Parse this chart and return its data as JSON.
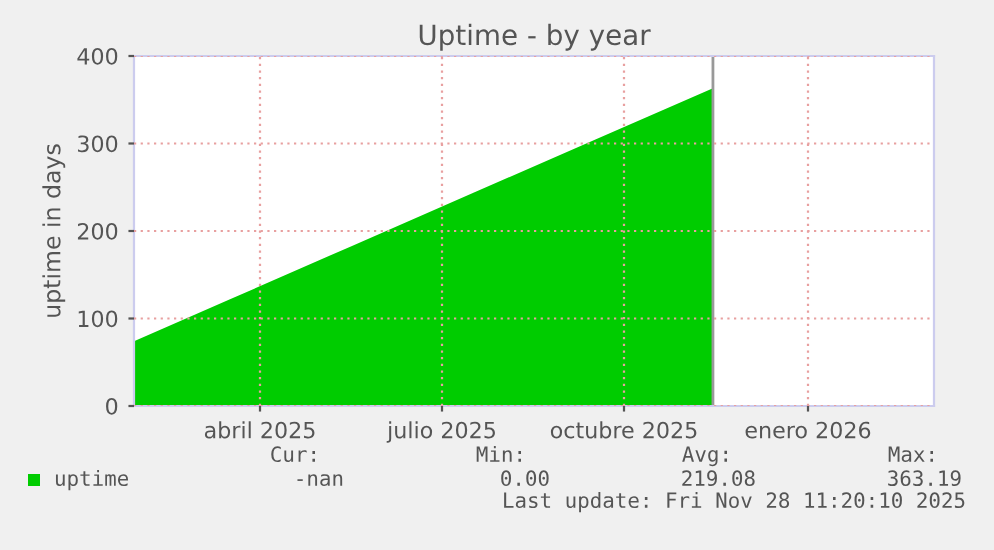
{
  "chart_data": {
    "type": "area",
    "title": "Uptime - by year",
    "ylabel": "uptime in days",
    "x": [
      "2025-02-12",
      "2025-04-01",
      "2025-06-01",
      "2025-08-01",
      "2025-10-01",
      "2025-11-28T11:20"
    ],
    "series": [
      {
        "name": "uptime",
        "color": "#00cc00",
        "values": [
          74,
          122,
          183,
          244,
          305,
          363.19
        ]
      }
    ],
    "xlim": [
      "2025-02-12",
      "2026-03-19"
    ],
    "xticks": [
      {
        "value": "2025-04-16",
        "label": "abril 2025"
      },
      {
        "value": "2025-07-16",
        "label": "julio 2025"
      },
      {
        "value": "2025-10-15",
        "label": "octubre 2025"
      },
      {
        "value": "2026-01-15",
        "label": "enero 2026"
      }
    ],
    "ylim": [
      0,
      400
    ],
    "yticks": [
      0,
      100,
      200,
      300,
      400
    ],
    "ref_lines": [
      {
        "axis": "x",
        "value": "2025-11-28T11:20",
        "color": "#999999"
      }
    ],
    "grid": true,
    "legend": "bottom",
    "annotations": [
      "Cur:",
      "Min:",
      "Avg:",
      "Max:",
      "-nan",
      "0.00",
      "219.08",
      "363.19",
      "Last update: Fri Nov 28 11:20:10 2025"
    ]
  }
}
